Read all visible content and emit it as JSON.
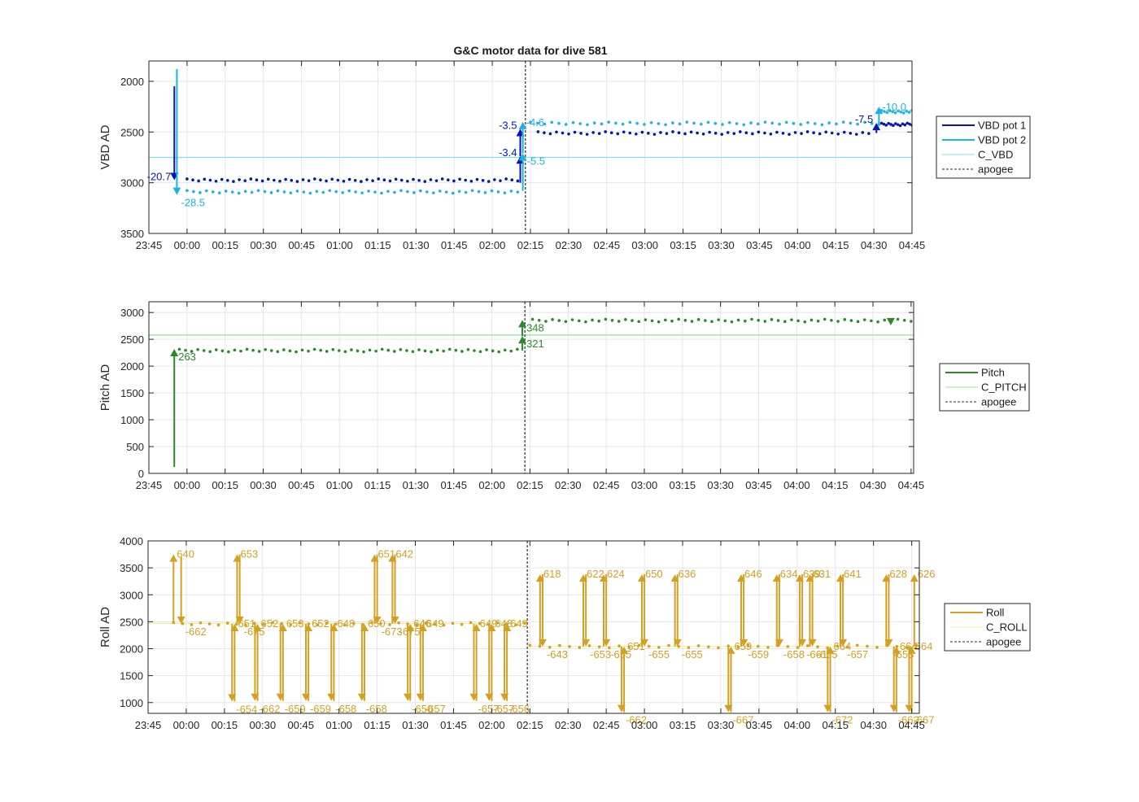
{
  "title": "G&C motor data for dive 581",
  "colors": {
    "vbd1": "#0a14b4",
    "vbd2": "#1ab4e4",
    "c_vbd": "#7fe0e8",
    "pitch": "#2a8a2a",
    "c_pitch": "#8ee88e",
    "roll": "#d4a024",
    "c_roll": "#f4ee9c",
    "apogee": "#555555",
    "grid": "#e6e6e6"
  },
  "chart_data": [
    {
      "type": "line",
      "ylabel": "VBD AD",
      "x_ticks": [
        "23:45",
        "00:00",
        "00:15",
        "00:30",
        "00:45",
        "01:00",
        "01:15",
        "01:30",
        "01:45",
        "02:00",
        "02:15",
        "02:30",
        "02:45",
        "03:00",
        "03:15",
        "03:30",
        "03:45",
        "04:00",
        "04:15",
        "04:30",
        "04:45"
      ],
      "xlim": [
        "23:45",
        "04:45"
      ],
      "ylim": [
        3500,
        1800
      ],
      "y_reversed": true,
      "y_ticks": [
        2000,
        2500,
        3000,
        3500
      ],
      "grid": true,
      "legend": {
        "placement": "outside-right",
        "entries": [
          "VBD pot 1",
          "VBD pot 2",
          "C_VBD",
          "apogee"
        ]
      },
      "apogee_x": "02:13",
      "reference_lines": [
        {
          "name": "C_VBD",
          "y": 2750
        }
      ],
      "series": [
        {
          "name": "VBD pot 1",
          "segments": [
            {
              "x_start": "00:00",
              "x_end": "02:10",
              "y": 2975,
              "count": 58
            },
            {
              "x_start": "02:18",
              "x_end": "04:28",
              "y": 2510,
              "count": 55
            },
            {
              "x_start": "04:33",
              "x_end": "04:45",
              "y": 2425,
              "count": 14
            }
          ]
        },
        {
          "name": "VBD pot 2",
          "segments": [
            {
              "x_start": "00:00",
              "x_end": "02:10",
              "y": 3090,
              "count": 52
            },
            {
              "x_start": "02:15",
              "x_end": "04:32",
              "y": 2415,
              "count": 50
            },
            {
              "x_start": "04:33",
              "x_end": "04:45",
              "y": 2300,
              "count": 12
            }
          ]
        }
      ],
      "arrows": [
        {
          "series": "VBD pot 1",
          "x": "23:55",
          "y_from": 2050,
          "y_to": 2975,
          "label": "-20.7",
          "label_side": "left"
        },
        {
          "series": "VBD pot 2",
          "x": "23:56",
          "y_from": 1880,
          "y_to": 3120,
          "label": "-28.5",
          "label_side": "right-below"
        },
        {
          "series": "VBD pot 1",
          "x": "02:11",
          "y_from": 3000,
          "y_to": 2740,
          "label": "-3.4",
          "label_side": "left"
        },
        {
          "series": "VBD pot 1",
          "x": "02:11",
          "y_from": 2740,
          "y_to": 2470,
          "label": "-3.5",
          "label_side": "left"
        },
        {
          "series": "VBD pot 2",
          "x": "02:12",
          "y_from": 3080,
          "y_to": 2710,
          "label": "-5.5",
          "label_side": "right-below"
        },
        {
          "series": "VBD pot 2",
          "x": "02:12",
          "y_from": 2710,
          "y_to": 2400,
          "label": "-4.6",
          "label_side": "right"
        },
        {
          "series": "VBD pot 1",
          "x": "04:31",
          "y_from": 2510,
          "y_to": 2410,
          "label": "-7.5",
          "label_side": "left"
        },
        {
          "series": "VBD pot 2",
          "x": "04:32",
          "y_from": 2415,
          "y_to": 2250,
          "label": "-10.0",
          "label_side": "right"
        }
      ]
    },
    {
      "type": "line",
      "ylabel": "Pitch AD",
      "x_ticks": [
        "23:45",
        "00:00",
        "00:15",
        "00:30",
        "00:45",
        "01:00",
        "01:15",
        "01:30",
        "01:45",
        "02:00",
        "02:15",
        "02:30",
        "02:45",
        "03:00",
        "03:15",
        "03:30",
        "03:45",
        "04:00",
        "04:15",
        "04:30",
        "04:45"
      ],
      "xlim": [
        "23:45",
        "04:46"
      ],
      "ylim": [
        0,
        3200
      ],
      "y_ticks": [
        0,
        500,
        1000,
        1500,
        2000,
        2500,
        3000
      ],
      "grid": true,
      "legend": {
        "placement": "outside-right",
        "entries": [
          "Pitch",
          "C_PITCH",
          "apogee"
        ]
      },
      "apogee_x": "02:13",
      "reference_lines": [
        {
          "name": "C_PITCH",
          "y": 2580
        }
      ],
      "series": [
        {
          "name": "Pitch",
          "segments": [
            {
              "x_start": "23:57",
              "x_end": "02:10",
              "y": 2290,
              "count": 56
            },
            {
              "x_start": "02:16",
              "x_end": "04:45",
              "y": 2850,
              "count": 58
            }
          ]
        }
      ],
      "arrows": [
        {
          "series": "Pitch",
          "x": "23:55",
          "y_from": 120,
          "y_to": 2320,
          "label": "263",
          "label_side": "right-below"
        },
        {
          "series": "Pitch",
          "x": "02:12",
          "y_from": 2290,
          "y_to": 2560,
          "label": "321",
          "label_side": "right-below"
        },
        {
          "series": "Pitch",
          "x": "02:12",
          "y_from": 2560,
          "y_to": 2860,
          "label": "348",
          "label_side": "right-below"
        },
        {
          "series": "Pitch",
          "x": "04:37",
          "y_from": 2880,
          "y_to": 2760,
          "label": "",
          "label_side": "right"
        }
      ]
    },
    {
      "type": "line",
      "ylabel": "Roll AD",
      "x_ticks": [
        "23:45",
        "00:00",
        "00:15",
        "00:30",
        "00:45",
        "01:00",
        "01:15",
        "01:30",
        "01:45",
        "02:00",
        "02:15",
        "02:30",
        "02:45",
        "03:00",
        "03:15",
        "03:30",
        "03:45",
        "04:00",
        "04:15",
        "04:30",
        "04:45"
      ],
      "xlim": [
        "23:45",
        "04:48"
      ],
      "ylim": [
        800,
        4000
      ],
      "y_ticks": [
        1000,
        1500,
        2000,
        2500,
        3000,
        3500,
        4000
      ],
      "grid": true,
      "legend": {
        "placement": "outside-right",
        "entries": [
          "Roll",
          "C_ROLL",
          "apogee"
        ]
      },
      "apogee_x": "02:14",
      "reference_lines": [
        {
          "name": "C_ROLL",
          "y": 2470,
          "x_start": "23:45",
          "x_end": "02:14"
        },
        {
          "name": "C_ROLL",
          "y": 2040,
          "x_start": "02:14",
          "x_end": "04:48"
        }
      ],
      "series": [
        {
          "name": "Roll",
          "segments": [
            {
              "x_start": "23:55",
              "x_end": "02:13",
              "y": 2460,
              "count": 40
            },
            {
              "x_start": "02:15",
              "x_end": "04:47",
              "y": 2040,
              "count": 40
            }
          ]
        }
      ],
      "arrows": [
        {
          "x": "23:55",
          "y_from": 2460,
          "y_to": 3750,
          "label": "640",
          "label_side": "right-above"
        },
        {
          "x": "23:58",
          "y_from": 3700,
          "y_to": 2460,
          "label": "-662",
          "label_side": "right-below"
        },
        {
          "x": "00:18",
          "y_from": 2460,
          "y_to": 1020,
          "label": "-654",
          "label_side": "right-below"
        },
        {
          "x": "00:19",
          "y_from": 1020,
          "y_to": 2460,
          "label": "651",
          "label_side": "right-above"
        },
        {
          "x": "00:20",
          "y_from": 2460,
          "y_to": 3750,
          "label": "653",
          "label_side": "right-above"
        },
        {
          "x": "00:21",
          "y_from": 3750,
          "y_to": 2460,
          "label": "-675",
          "label_side": "right-below"
        },
        {
          "x": "00:27",
          "y_from": 2460,
          "y_to": 1030,
          "label": "-662",
          "label_side": "right-below"
        },
        {
          "x": "00:28",
          "y_from": 1030,
          "y_to": 2460,
          "label": "652",
          "label_side": "right-above"
        },
        {
          "x": "00:37",
          "y_from": 2460,
          "y_to": 1030,
          "label": "-659",
          "label_side": "right-below"
        },
        {
          "x": "00:38",
          "y_from": 1030,
          "y_to": 2460,
          "label": "653",
          "label_side": "right-above"
        },
        {
          "x": "00:47",
          "y_from": 2460,
          "y_to": 1030,
          "label": "-659",
          "label_side": "right-below"
        },
        {
          "x": "00:48",
          "y_from": 1030,
          "y_to": 2460,
          "label": "652",
          "label_side": "right-above"
        },
        {
          "x": "00:57",
          "y_from": 2460,
          "y_to": 1030,
          "label": "-658",
          "label_side": "right-below"
        },
        {
          "x": "00:58",
          "y_from": 1030,
          "y_to": 2460,
          "label": "648",
          "label_side": "right-above"
        },
        {
          "x": "01:09",
          "y_from": 2460,
          "y_to": 1030,
          "label": "-658",
          "label_side": "right-below"
        },
        {
          "x": "01:10",
          "y_from": 1030,
          "y_to": 2460,
          "label": "650",
          "label_side": "right-above"
        },
        {
          "x": "01:14",
          "y_from": 2460,
          "y_to": 3750,
          "label": "651",
          "label_side": "right-above"
        },
        {
          "x": "01:15",
          "y_from": 3750,
          "y_to": 2460,
          "label": "-673",
          "label_side": "right-below"
        },
        {
          "x": "01:21",
          "y_from": 2460,
          "y_to": 3750,
          "label": "642",
          "label_side": "right-above"
        },
        {
          "x": "01:22",
          "y_from": 3750,
          "y_to": 2460,
          "label": "-675",
          "label_side": "right-below"
        },
        {
          "x": "01:27",
          "y_from": 2460,
          "y_to": 1030,
          "label": "-650",
          "label_side": "right-below"
        },
        {
          "x": "01:28",
          "y_from": 1030,
          "y_to": 2460,
          "label": "646",
          "label_side": "right-above"
        },
        {
          "x": "01:32",
          "y_from": 2460,
          "y_to": 1030,
          "label": "-657",
          "label_side": "right-below"
        },
        {
          "x": "01:33",
          "y_from": 1030,
          "y_to": 2460,
          "label": "649",
          "label_side": "right-above"
        },
        {
          "x": "01:53",
          "y_from": 2460,
          "y_to": 1030,
          "label": "-657",
          "label_side": "right-below"
        },
        {
          "x": "01:54",
          "y_from": 1030,
          "y_to": 2460,
          "label": "649",
          "label_side": "right-above"
        },
        {
          "x": "01:59",
          "y_from": 2460,
          "y_to": 1030,
          "label": "-657",
          "label_side": "right-below"
        },
        {
          "x": "02:00",
          "y_from": 1030,
          "y_to": 2460,
          "label": "648",
          "label_side": "right-above"
        },
        {
          "x": "02:05",
          "y_from": 2460,
          "y_to": 1030,
          "label": "-656",
          "label_side": "right-below"
        },
        {
          "x": "02:06",
          "y_from": 1030,
          "y_to": 2460,
          "label": "649",
          "label_side": "right-above"
        },
        {
          "x": "02:19",
          "y_from": 2040,
          "y_to": 3380,
          "label": "618",
          "label_side": "right-above"
        },
        {
          "x": "02:20",
          "y_from": 3380,
          "y_to": 2040,
          "label": "-643",
          "label_side": "right-below"
        },
        {
          "x": "02:36",
          "y_from": 2040,
          "y_to": 3380,
          "label": "622",
          "label_side": "right-above"
        },
        {
          "x": "02:37",
          "y_from": 3380,
          "y_to": 2040,
          "label": "-653",
          "label_side": "right-below"
        },
        {
          "x": "02:44",
          "y_from": 2040,
          "y_to": 3380,
          "label": "624",
          "label_side": "right-above"
        },
        {
          "x": "02:45",
          "y_from": 3380,
          "y_to": 2040,
          "label": "-655",
          "label_side": "right-below"
        },
        {
          "x": "02:51",
          "y_from": 2040,
          "y_to": 820,
          "label": "-662",
          "label_side": "right-below"
        },
        {
          "x": "02:52",
          "y_from": 820,
          "y_to": 2040,
          "label": "651",
          "label_side": "right-above"
        },
        {
          "x": "02:59",
          "y_from": 2040,
          "y_to": 3380,
          "label": "650",
          "label_side": "right-above"
        },
        {
          "x": "03:00",
          "y_from": 3380,
          "y_to": 2040,
          "label": "-655",
          "label_side": "right-below"
        },
        {
          "x": "03:12",
          "y_from": 2040,
          "y_to": 3380,
          "label": "636",
          "label_side": "right-above"
        },
        {
          "x": "03:13",
          "y_from": 3380,
          "y_to": 2040,
          "label": "-655",
          "label_side": "right-below"
        },
        {
          "x": "03:33",
          "y_from": 2040,
          "y_to": 820,
          "label": "-667",
          "label_side": "right-below"
        },
        {
          "x": "03:34",
          "y_from": 820,
          "y_to": 2040,
          "label": "659",
          "label_side": "right-above"
        },
        {
          "x": "03:38",
          "y_from": 2040,
          "y_to": 3380,
          "label": "646",
          "label_side": "right-above"
        },
        {
          "x": "03:39",
          "y_from": 3380,
          "y_to": 2040,
          "label": "-659",
          "label_side": "right-below"
        },
        {
          "x": "03:52",
          "y_from": 2040,
          "y_to": 3380,
          "label": "634",
          "label_side": "right-above"
        },
        {
          "x": "03:53",
          "y_from": 3380,
          "y_to": 2040,
          "label": "-658",
          "label_side": "right-below"
        },
        {
          "x": "04:01",
          "y_from": 2040,
          "y_to": 3380,
          "label": "639",
          "label_side": "right-above"
        },
        {
          "x": "04:02",
          "y_from": 3380,
          "y_to": 2040,
          "label": "-661",
          "label_side": "right-below"
        },
        {
          "x": "04:05",
          "y_from": 2040,
          "y_to": 3380,
          "label": "631",
          "label_side": "right-above"
        },
        {
          "x": "04:06",
          "y_from": 3380,
          "y_to": 2040,
          "label": "-655",
          "label_side": "right-below"
        },
        {
          "x": "04:12",
          "y_from": 2040,
          "y_to": 820,
          "label": "-672",
          "label_side": "right-below"
        },
        {
          "x": "04:13",
          "y_from": 820,
          "y_to": 2040,
          "label": "664",
          "label_side": "right-above"
        },
        {
          "x": "04:17",
          "y_from": 2040,
          "y_to": 3380,
          "label": "641",
          "label_side": "right-above"
        },
        {
          "x": "04:18",
          "y_from": 3380,
          "y_to": 2040,
          "label": "-657",
          "label_side": "right-below"
        },
        {
          "x": "04:35",
          "y_from": 2040,
          "y_to": 3380,
          "label": "628",
          "label_side": "right-above"
        },
        {
          "x": "04:36",
          "y_from": 3380,
          "y_to": 2040,
          "label": "-653",
          "label_side": "right-below"
        },
        {
          "x": "04:38",
          "y_from": 2040,
          "y_to": 820,
          "label": "-662",
          "label_side": "right-below"
        },
        {
          "x": "04:39",
          "y_from": 820,
          "y_to": 2040,
          "label": "664",
          "label_side": "right-above"
        },
        {
          "x": "04:44",
          "y_from": 2040,
          "y_to": 820,
          "label": "-667",
          "label_side": "right-below"
        },
        {
          "x": "04:45",
          "y_from": 820,
          "y_to": 2040,
          "label": "664",
          "label_side": "right-above"
        },
        {
          "x": "04:46",
          "y_from": 2040,
          "y_to": 3380,
          "label": "626",
          "label_side": "right-above"
        }
      ]
    }
  ]
}
